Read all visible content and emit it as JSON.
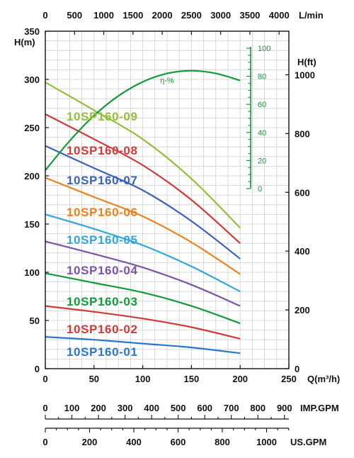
{
  "chart_data": {
    "type": "line",
    "axes": {
      "q_m3h": {
        "label": "Q(m³/h)",
        "ticks": [
          "0",
          "50",
          "100",
          "150",
          "200",
          "250"
        ],
        "range": [
          0,
          250
        ]
      },
      "l_min": {
        "label": "L/min",
        "ticks": [
          "0",
          "500",
          "1000",
          "1500",
          "2000",
          "2500",
          "3000",
          "3500",
          "4000"
        ],
        "range": [
          0,
          4166.7
        ]
      },
      "head_m": {
        "label": "H(m)",
        "ticks": [
          "0",
          "50",
          "100",
          "150",
          "200",
          "250",
          "300",
          "350"
        ],
        "range": [
          0,
          350
        ]
      },
      "head_ft": {
        "label": "H(ft)",
        "ticks": [
          "0",
          "200",
          "400",
          "600",
          "800",
          "1000"
        ],
        "range": [
          0,
          1148.3
        ]
      },
      "imp_gpm": {
        "label": "IMP.GPM",
        "ticks": [
          "0",
          "100",
          "200",
          "300",
          "400",
          "500",
          "600",
          "700",
          "800",
          "900"
        ],
        "range": [
          0,
          916.5
        ]
      },
      "us_gpm": {
        "label": "US.GPM",
        "ticks": [
          "0",
          "200",
          "400",
          "600",
          "800",
          "1000"
        ],
        "range": [
          0,
          1100.7
        ]
      },
      "efficiency": {
        "label": "η-%",
        "ticks": [
          "0",
          "20",
          "40",
          "60",
          "80",
          "100"
        ],
        "range": [
          0,
          100
        ]
      }
    },
    "grid": true,
    "series": [
      {
        "name": "10SP160-01",
        "color": "#2a78c8",
        "x": [
          0,
          50,
          100,
          150,
          200
        ],
        "y": [
          33,
          30,
          26,
          22,
          16
        ]
      },
      {
        "name": "10SP160-02",
        "color": "#d03a3a",
        "x": [
          0,
          50,
          100,
          150,
          200
        ],
        "y": [
          65,
          59,
          52,
          43,
          31
        ]
      },
      {
        "name": "10SP160-03",
        "color": "#129a3c",
        "x": [
          0,
          50,
          100,
          150,
          200
        ],
        "y": [
          99,
          89,
          79,
          65,
          47
        ]
      },
      {
        "name": "10SP160-04",
        "color": "#7a55a8",
        "x": [
          0,
          50,
          100,
          150,
          200
        ],
        "y": [
          132,
          119,
          105,
          87,
          65
        ]
      },
      {
        "name": "10SP160-05",
        "color": "#30a7d8",
        "x": [
          0,
          50,
          100,
          150,
          200
        ],
        "y": [
          160,
          145,
          128,
          106,
          80
        ]
      },
      {
        "name": "10SP160-06",
        "color": "#f0821e",
        "x": [
          0,
          50,
          100,
          150,
          200
        ],
        "y": [
          198,
          178,
          158,
          131,
          98
        ]
      },
      {
        "name": "10SP160-07",
        "color": "#3a63b8",
        "x": [
          0,
          50,
          100,
          150,
          200
        ],
        "y": [
          231,
          208,
          185,
          153,
          114
        ]
      },
      {
        "name": "10SP160-08",
        "color": "#d03a3a",
        "x": [
          0,
          50,
          100,
          150,
          200
        ],
        "y": [
          264,
          238,
          211,
          175,
          130
        ]
      },
      {
        "name": "10SP160-09",
        "color": "#93bf3a",
        "x": [
          0,
          50,
          100,
          150,
          200
        ],
        "y": [
          297,
          268,
          238,
          197,
          146
        ]
      }
    ],
    "efficiency_curve": {
      "name": "η-%",
      "color": "#129a3c",
      "x": [
        0,
        25,
        50,
        75,
        100,
        125,
        150,
        175,
        200
      ],
      "y": [
        13,
        34,
        52,
        66,
        76,
        82,
        84,
        82,
        77
      ]
    }
  }
}
